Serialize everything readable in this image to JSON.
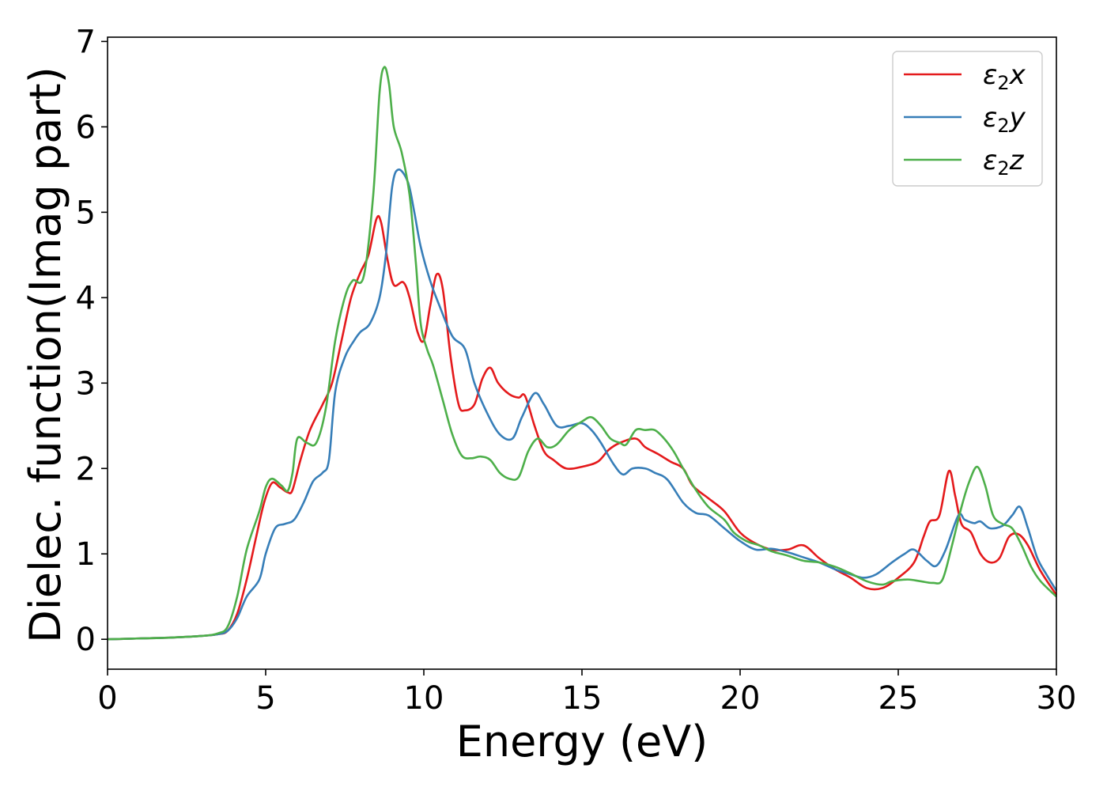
{
  "chart_data": {
    "type": "line",
    "xlabel": "Energy (eV)",
    "ylabel": "Dielec. function(Imag part)",
    "xlim": [
      0,
      30
    ],
    "ylim": [
      -0.35,
      7.05
    ],
    "xticks": [
      0,
      5,
      10,
      15,
      20,
      25,
      30
    ],
    "yticks": [
      0,
      1,
      2,
      3,
      4,
      5,
      6,
      7
    ],
    "grid": false,
    "legend_position": "top-right",
    "series": [
      {
        "name": "ε₂x",
        "legend": {
          "base": "ε",
          "sub": "2",
          "comp": "x"
        },
        "color": "#e41a1c",
        "points": [
          [
            0,
            0
          ],
          [
            1,
            0.01
          ],
          [
            2,
            0.02
          ],
          [
            3,
            0.04
          ],
          [
            3.5,
            0.06
          ],
          [
            3.8,
            0.1
          ],
          [
            4.1,
            0.3
          ],
          [
            4.4,
            0.7
          ],
          [
            4.7,
            1.2
          ],
          [
            4.95,
            1.6
          ],
          [
            5.2,
            1.83
          ],
          [
            5.45,
            1.78
          ],
          [
            5.7,
            1.72
          ],
          [
            5.85,
            1.75
          ],
          [
            6.1,
            2.1
          ],
          [
            6.4,
            2.45
          ],
          [
            6.8,
            2.75
          ],
          [
            7.1,
            3.0
          ],
          [
            7.4,
            3.5
          ],
          [
            7.7,
            4.0
          ],
          [
            8.0,
            4.3
          ],
          [
            8.25,
            4.5
          ],
          [
            8.5,
            4.92
          ],
          [
            8.65,
            4.88
          ],
          [
            8.85,
            4.45
          ],
          [
            9.05,
            4.15
          ],
          [
            9.35,
            4.18
          ],
          [
            9.55,
            4.0
          ],
          [
            9.8,
            3.6
          ],
          [
            10.0,
            3.5
          ],
          [
            10.2,
            3.9
          ],
          [
            10.4,
            4.27
          ],
          [
            10.6,
            4.1
          ],
          [
            10.85,
            3.3
          ],
          [
            11.1,
            2.75
          ],
          [
            11.3,
            2.68
          ],
          [
            11.6,
            2.75
          ],
          [
            11.85,
            3.05
          ],
          [
            12.1,
            3.18
          ],
          [
            12.35,
            3.0
          ],
          [
            12.7,
            2.87
          ],
          [
            13.0,
            2.83
          ],
          [
            13.2,
            2.85
          ],
          [
            13.5,
            2.5
          ],
          [
            13.8,
            2.2
          ],
          [
            14.1,
            2.1
          ],
          [
            14.5,
            2.0
          ],
          [
            15.0,
            2.02
          ],
          [
            15.5,
            2.08
          ],
          [
            15.85,
            2.22
          ],
          [
            16.2,
            2.3
          ],
          [
            16.7,
            2.35
          ],
          [
            17.0,
            2.25
          ],
          [
            17.4,
            2.17
          ],
          [
            17.8,
            2.08
          ],
          [
            18.2,
            2.0
          ],
          [
            18.5,
            1.8
          ],
          [
            19.0,
            1.65
          ],
          [
            19.5,
            1.5
          ],
          [
            20.0,
            1.25
          ],
          [
            20.5,
            1.12
          ],
          [
            21.0,
            1.05
          ],
          [
            21.5,
            1.05
          ],
          [
            22.0,
            1.1
          ],
          [
            22.5,
            0.95
          ],
          [
            23.0,
            0.82
          ],
          [
            23.5,
            0.72
          ],
          [
            24.0,
            0.6
          ],
          [
            24.5,
            0.6
          ],
          [
            25.0,
            0.72
          ],
          [
            25.5,
            0.9
          ],
          [
            25.8,
            1.2
          ],
          [
            26.0,
            1.38
          ],
          [
            26.3,
            1.45
          ],
          [
            26.6,
            1.97
          ],
          [
            26.8,
            1.68
          ],
          [
            27.0,
            1.35
          ],
          [
            27.3,
            1.25
          ],
          [
            27.6,
            1.0
          ],
          [
            27.9,
            0.9
          ],
          [
            28.2,
            0.95
          ],
          [
            28.5,
            1.2
          ],
          [
            28.8,
            1.23
          ],
          [
            29.1,
            1.1
          ],
          [
            29.5,
            0.8
          ],
          [
            30.0,
            0.52
          ]
        ]
      },
      {
        "name": "ε₂y",
        "legend": {
          "base": "ε",
          "sub": "2",
          "comp": "y"
        },
        "color": "#377eb8",
        "points": [
          [
            0,
            0
          ],
          [
            1,
            0.01
          ],
          [
            2,
            0.02
          ],
          [
            3,
            0.04
          ],
          [
            3.5,
            0.06
          ],
          [
            3.8,
            0.1
          ],
          [
            4.1,
            0.25
          ],
          [
            4.4,
            0.5
          ],
          [
            4.8,
            0.7
          ],
          [
            5.0,
            1.0
          ],
          [
            5.3,
            1.3
          ],
          [
            5.6,
            1.35
          ],
          [
            5.9,
            1.4
          ],
          [
            6.2,
            1.6
          ],
          [
            6.5,
            1.85
          ],
          [
            6.8,
            1.95
          ],
          [
            7.0,
            2.1
          ],
          [
            7.2,
            2.9
          ],
          [
            7.5,
            3.3
          ],
          [
            7.8,
            3.5
          ],
          [
            8.0,
            3.6
          ],
          [
            8.3,
            3.7
          ],
          [
            8.6,
            4.0
          ],
          [
            8.8,
            4.5
          ],
          [
            9.0,
            5.3
          ],
          [
            9.2,
            5.5
          ],
          [
            9.5,
            5.35
          ],
          [
            9.7,
            5.0
          ],
          [
            9.9,
            4.6
          ],
          [
            10.2,
            4.2
          ],
          [
            10.5,
            3.9
          ],
          [
            10.9,
            3.55
          ],
          [
            11.3,
            3.4
          ],
          [
            11.6,
            3.0
          ],
          [
            12.0,
            2.65
          ],
          [
            12.4,
            2.4
          ],
          [
            12.8,
            2.35
          ],
          [
            13.1,
            2.6
          ],
          [
            13.5,
            2.88
          ],
          [
            13.8,
            2.75
          ],
          [
            14.2,
            2.5
          ],
          [
            14.6,
            2.5
          ],
          [
            15.0,
            2.53
          ],
          [
            15.3,
            2.45
          ],
          [
            15.6,
            2.3
          ],
          [
            16.0,
            2.05
          ],
          [
            16.3,
            1.93
          ],
          [
            16.6,
            2.0
          ],
          [
            17.0,
            2.0
          ],
          [
            17.3,
            1.95
          ],
          [
            17.7,
            1.87
          ],
          [
            18.2,
            1.6
          ],
          [
            18.6,
            1.48
          ],
          [
            19.0,
            1.45
          ],
          [
            19.5,
            1.3
          ],
          [
            20.0,
            1.15
          ],
          [
            20.5,
            1.05
          ],
          [
            21.0,
            1.06
          ],
          [
            21.5,
            1.02
          ],
          [
            22.0,
            0.96
          ],
          [
            22.5,
            0.9
          ],
          [
            23.0,
            0.82
          ],
          [
            23.5,
            0.76
          ],
          [
            23.9,
            0.72
          ],
          [
            24.3,
            0.76
          ],
          [
            24.8,
            0.9
          ],
          [
            25.2,
            1.0
          ],
          [
            25.5,
            1.05
          ],
          [
            25.9,
            0.92
          ],
          [
            26.2,
            0.86
          ],
          [
            26.5,
            1.05
          ],
          [
            26.9,
            1.45
          ],
          [
            27.1,
            1.4
          ],
          [
            27.4,
            1.36
          ],
          [
            27.6,
            1.38
          ],
          [
            27.9,
            1.3
          ],
          [
            28.3,
            1.33
          ],
          [
            28.6,
            1.45
          ],
          [
            28.85,
            1.55
          ],
          [
            29.1,
            1.3
          ],
          [
            29.4,
            0.95
          ],
          [
            29.7,
            0.75
          ],
          [
            30.0,
            0.57
          ]
        ]
      },
      {
        "name": "ε₂z",
        "legend": {
          "base": "ε",
          "sub": "2",
          "comp": "z"
        },
        "color": "#4daf4a",
        "points": [
          [
            0,
            0
          ],
          [
            1,
            0.01
          ],
          [
            2,
            0.02
          ],
          [
            3,
            0.04
          ],
          [
            3.5,
            0.07
          ],
          [
            3.8,
            0.15
          ],
          [
            4.1,
            0.5
          ],
          [
            4.4,
            1.05
          ],
          [
            4.8,
            1.5
          ],
          [
            5.0,
            1.78
          ],
          [
            5.2,
            1.88
          ],
          [
            5.5,
            1.8
          ],
          [
            5.7,
            1.74
          ],
          [
            5.85,
            1.95
          ],
          [
            6.0,
            2.35
          ],
          [
            6.3,
            2.3
          ],
          [
            6.6,
            2.3
          ],
          [
            6.9,
            2.7
          ],
          [
            7.2,
            3.5
          ],
          [
            7.5,
            4.0
          ],
          [
            7.75,
            4.2
          ],
          [
            8.1,
            4.25
          ],
          [
            8.4,
            5.2
          ],
          [
            8.6,
            6.4
          ],
          [
            8.75,
            6.7
          ],
          [
            8.9,
            6.5
          ],
          [
            9.05,
            6.0
          ],
          [
            9.3,
            5.7
          ],
          [
            9.55,
            5.2
          ],
          [
            9.75,
            4.4
          ],
          [
            9.9,
            3.7
          ],
          [
            10.1,
            3.4
          ],
          [
            10.3,
            3.2
          ],
          [
            10.6,
            2.8
          ],
          [
            10.9,
            2.4
          ],
          [
            11.2,
            2.15
          ],
          [
            11.5,
            2.12
          ],
          [
            11.8,
            2.14
          ],
          [
            12.1,
            2.1
          ],
          [
            12.4,
            1.95
          ],
          [
            12.7,
            1.88
          ],
          [
            13.0,
            1.9
          ],
          [
            13.3,
            2.2
          ],
          [
            13.6,
            2.35
          ],
          [
            13.9,
            2.25
          ],
          [
            14.2,
            2.28
          ],
          [
            14.6,
            2.45
          ],
          [
            15.0,
            2.55
          ],
          [
            15.3,
            2.6
          ],
          [
            15.6,
            2.5
          ],
          [
            15.9,
            2.35
          ],
          [
            16.2,
            2.3
          ],
          [
            16.4,
            2.28
          ],
          [
            16.7,
            2.45
          ],
          [
            17.0,
            2.45
          ],
          [
            17.3,
            2.45
          ],
          [
            17.6,
            2.35
          ],
          [
            17.9,
            2.2
          ],
          [
            18.2,
            2.0
          ],
          [
            18.6,
            1.75
          ],
          [
            19.0,
            1.55
          ],
          [
            19.5,
            1.4
          ],
          [
            19.8,
            1.25
          ],
          [
            20.2,
            1.15
          ],
          [
            20.6,
            1.1
          ],
          [
            21.0,
            1.03
          ],
          [
            21.5,
            0.98
          ],
          [
            22.0,
            0.92
          ],
          [
            22.5,
            0.9
          ],
          [
            23.0,
            0.85
          ],
          [
            23.5,
            0.77
          ],
          [
            24.0,
            0.68
          ],
          [
            24.5,
            0.64
          ],
          [
            24.8,
            0.68
          ],
          [
            25.3,
            0.7
          ],
          [
            25.7,
            0.68
          ],
          [
            26.1,
            0.66
          ],
          [
            26.4,
            0.7
          ],
          [
            26.7,
            1.1
          ],
          [
            27.0,
            1.55
          ],
          [
            27.25,
            1.85
          ],
          [
            27.5,
            2.02
          ],
          [
            27.75,
            1.8
          ],
          [
            28.0,
            1.45
          ],
          [
            28.3,
            1.35
          ],
          [
            28.6,
            1.3
          ],
          [
            28.9,
            1.1
          ],
          [
            29.2,
            0.85
          ],
          [
            29.5,
            0.68
          ],
          [
            30.0,
            0.5
          ]
        ]
      }
    ]
  }
}
